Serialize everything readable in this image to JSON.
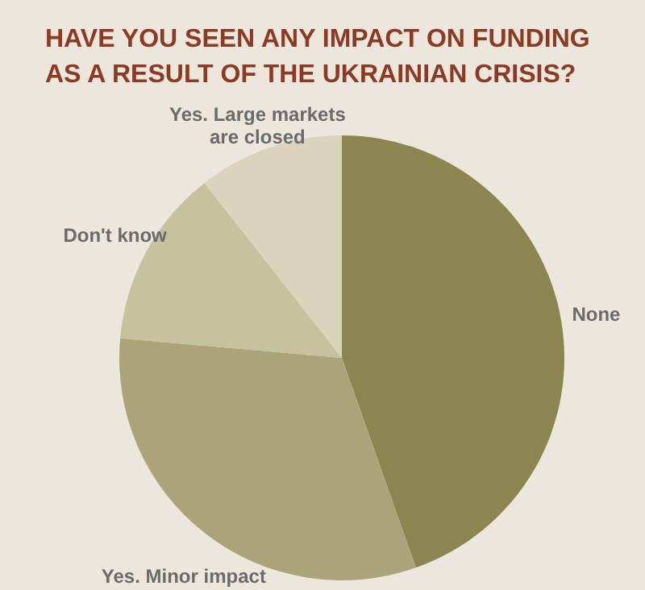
{
  "chart_data": {
    "type": "pie",
    "title": "HAVE YOU SEEN ANY IMPACT ON FUNDING\nAS A RESULT OF THE UKRAINIAN CRISIS?",
    "categories": [
      "None",
      "Yes. Minor impact",
      "Don't know",
      "Yes. Large markets\nare closed"
    ],
    "values": [
      44.6,
      31.8,
      13,
      10.6
    ],
    "colors": [
      "#8b8550",
      "#aba47a",
      "#c6c19f",
      "#dbd4bc"
    ]
  }
}
